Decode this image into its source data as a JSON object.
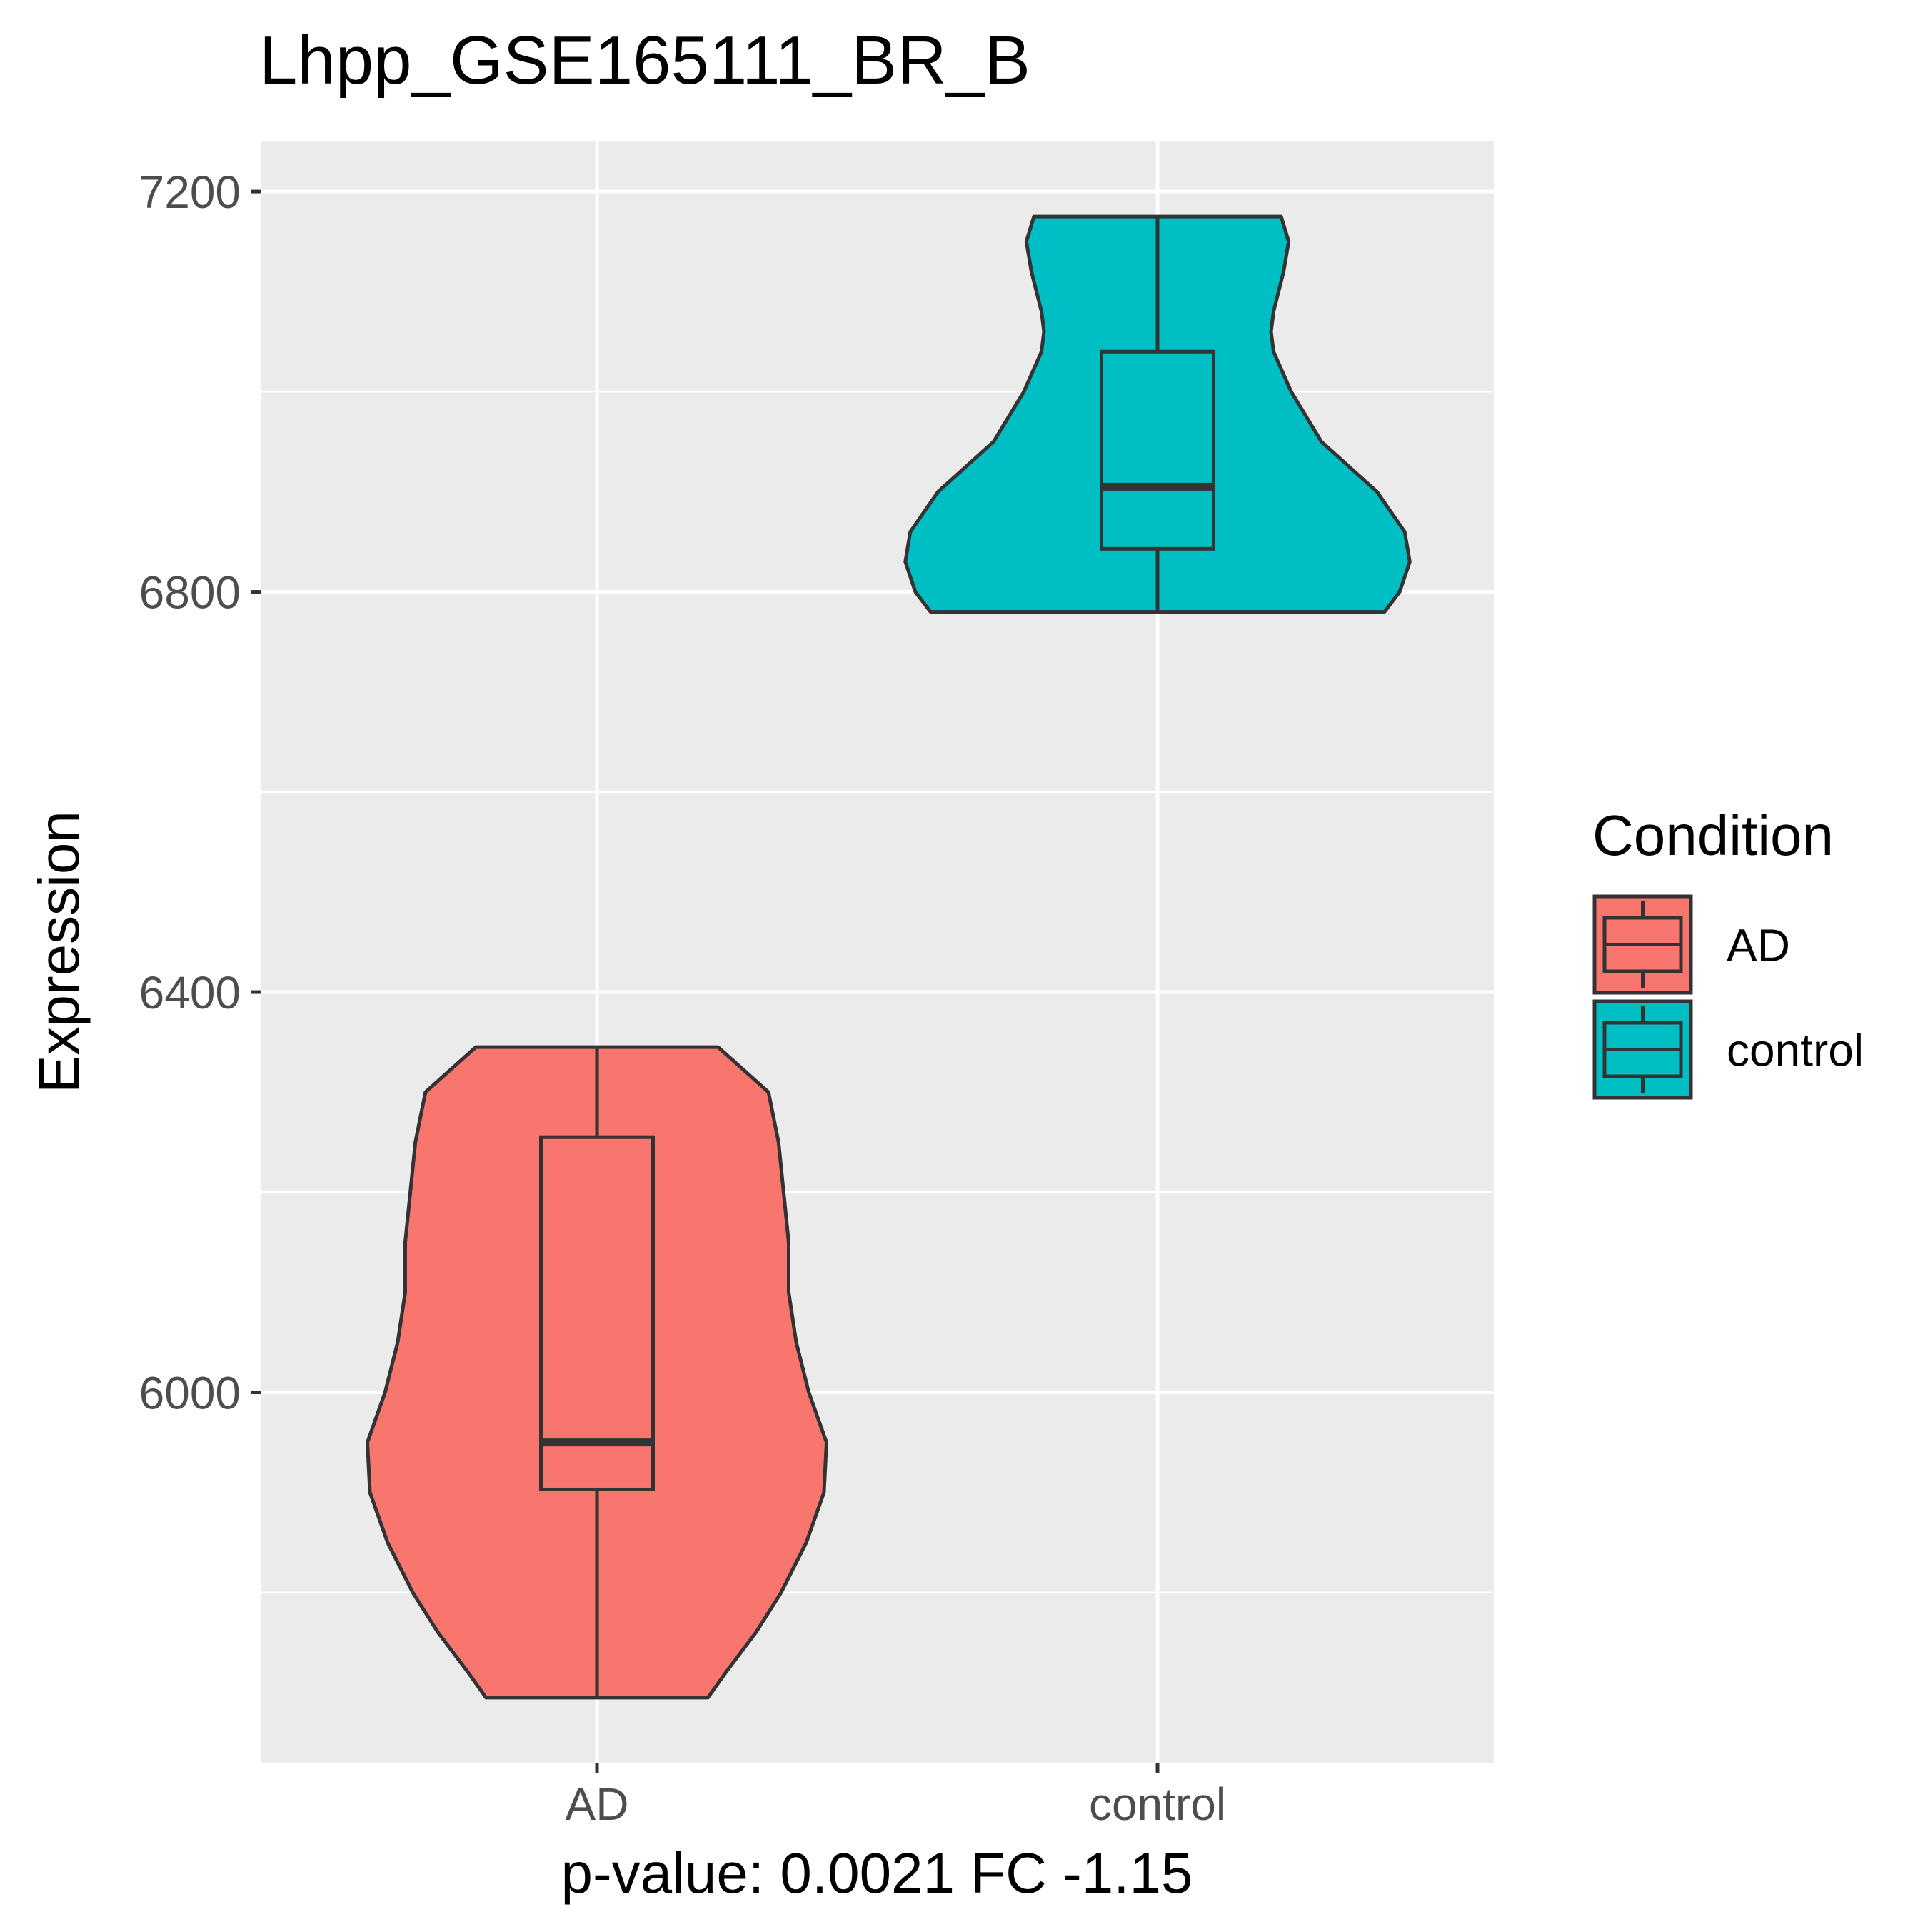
{
  "chart_data": {
    "type": "violin",
    "title": "Lhpp_GSE165111_BR_B",
    "xlabel": "p-value: 0.0021 FC -1.15",
    "ylabel": "Expression",
    "categories": [
      "AD",
      "control"
    ],
    "ylim": [
      5630,
      7250
    ],
    "yticks": [
      6000,
      6400,
      6800,
      7200
    ],
    "grid": true,
    "legend": {
      "title": "Condition",
      "placement": "right",
      "entries": [
        {
          "label": "AD",
          "color": "#F8766D"
        },
        {
          "label": "control",
          "color": "#00BFC4"
        }
      ]
    },
    "series": [
      {
        "name": "AD",
        "color": "#F8766D",
        "min": 5695,
        "q1": 5903,
        "median": 5950,
        "q3": 6255,
        "max": 6345,
        "density": [
          [
            5695,
            0.44
          ],
          [
            5720,
            0.51
          ],
          [
            5760,
            0.63
          ],
          [
            5800,
            0.73
          ],
          [
            5850,
            0.83
          ],
          [
            5900,
            0.9
          ],
          [
            5950,
            0.91
          ],
          [
            6000,
            0.84
          ],
          [
            6050,
            0.79
          ],
          [
            6100,
            0.76
          ],
          [
            6150,
            0.76
          ],
          [
            6200,
            0.74
          ],
          [
            6250,
            0.72
          ],
          [
            6300,
            0.68
          ],
          [
            6345,
            0.48
          ]
        ]
      },
      {
        "name": "control",
        "color": "#00BFC4",
        "min": 6780,
        "q1": 6843,
        "median": 6905,
        "q3": 7040,
        "max": 7175,
        "density": [
          [
            6780,
            0.9
          ],
          [
            6800,
            0.96
          ],
          [
            6830,
            1.0
          ],
          [
            6860,
            0.98
          ],
          [
            6900,
            0.87
          ],
          [
            6950,
            0.65
          ],
          [
            7000,
            0.53
          ],
          [
            7040,
            0.46
          ],
          [
            7060,
            0.45
          ],
          [
            7080,
            0.46
          ],
          [
            7120,
            0.5
          ],
          [
            7150,
            0.52
          ],
          [
            7175,
            0.49
          ]
        ]
      }
    ]
  }
}
